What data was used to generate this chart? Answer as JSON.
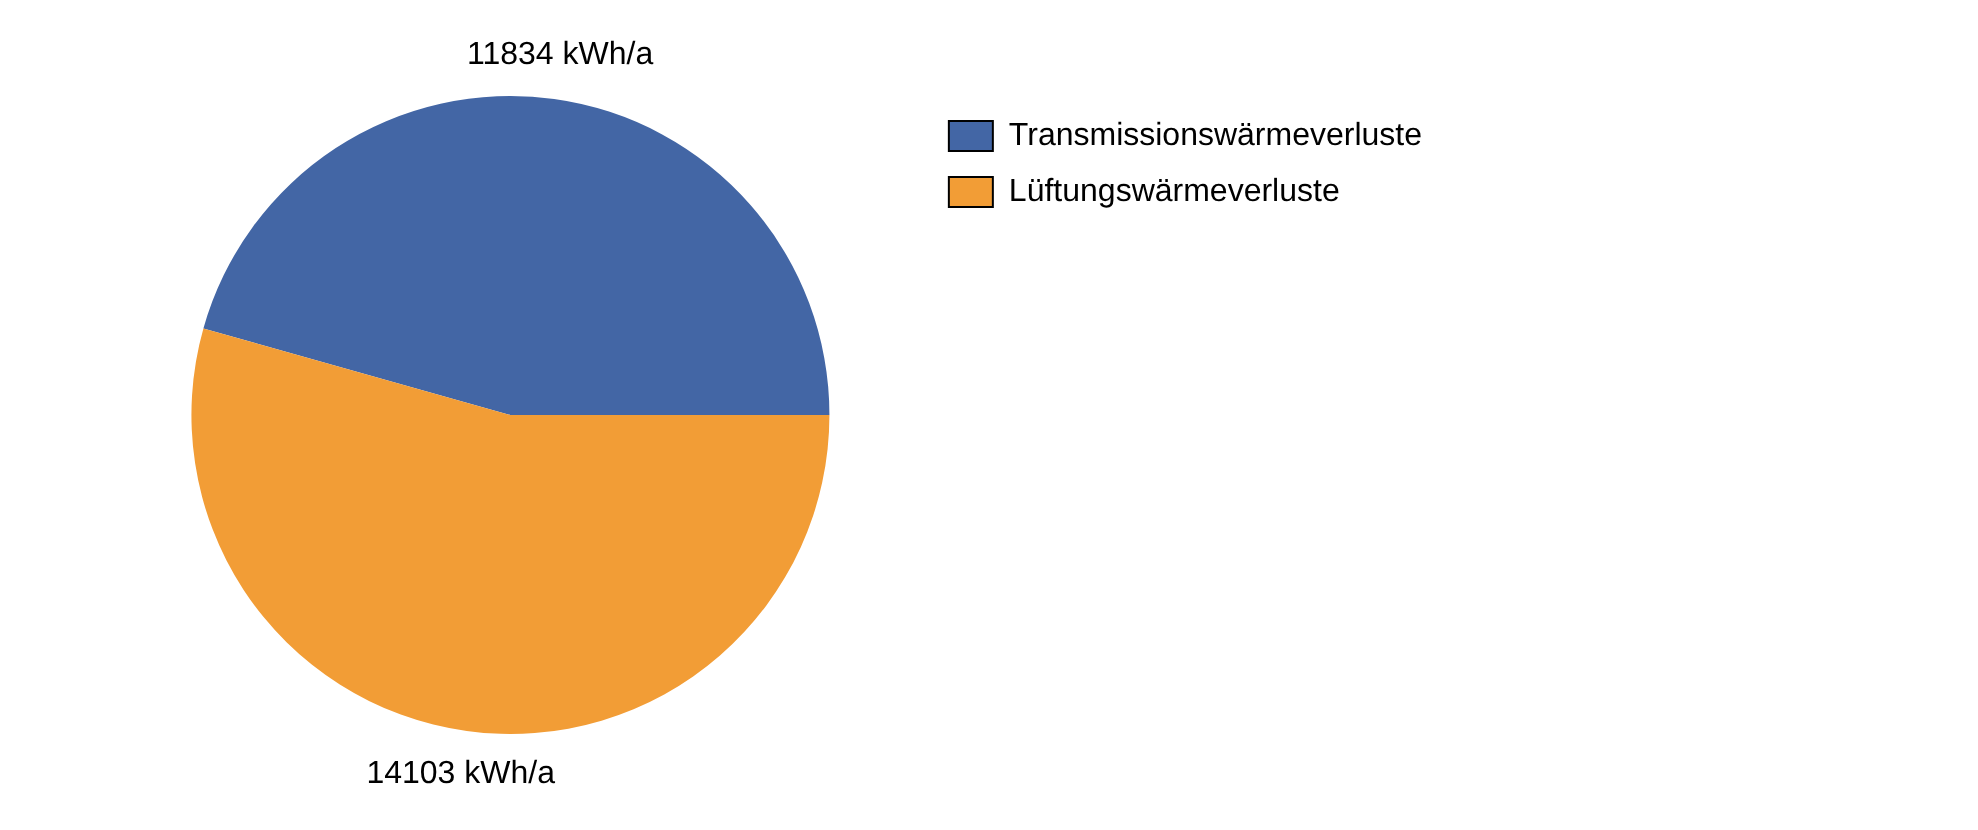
{
  "chart_data": {
    "type": "pie",
    "categories": [
      "Transmissionswärmeverluste",
      "Lüftungswärmeverluste"
    ],
    "values": [
      11834,
      14103
    ],
    "colors": [
      "#4366a5",
      "#f29d36"
    ],
    "value_labels": [
      "11834 kWh/a",
      "14103 kWh/a"
    ],
    "legend": "top right"
  }
}
